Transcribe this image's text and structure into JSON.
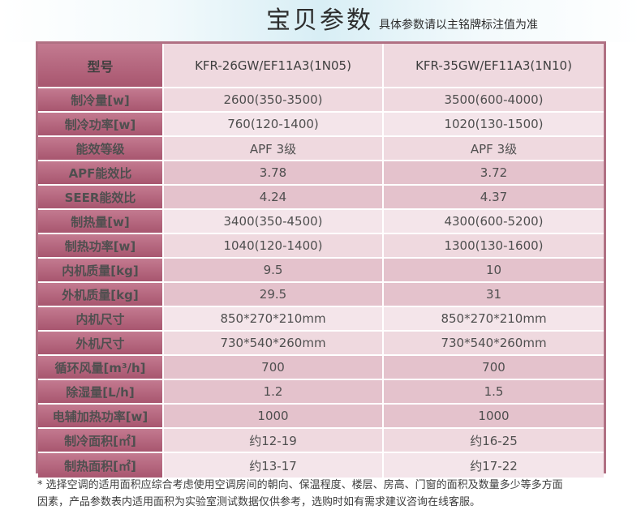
{
  "banner": {
    "title": "宝贝参数",
    "subtitle": "具体参数请以主铭牌标注值为准"
  },
  "table": {
    "header": {
      "label": "型号",
      "model_a": "KFR-26GW/EF11A3(1N05)",
      "model_b": "KFR-35GW/EF11A3(1N10)"
    },
    "rows": [
      {
        "label": "制冷量[w]",
        "a": "2600(350-3500)",
        "b": "3500(600-4000)"
      },
      {
        "label": "制冷功率[w]",
        "a": "760(120-1400)",
        "b": "1020(130-1500)"
      },
      {
        "label": "能效等级",
        "a": "APF 3级",
        "b": "APF 3级"
      },
      {
        "label": "APF能效比",
        "a": "3.78",
        "b": "3.72"
      },
      {
        "label": "SEER能效比",
        "a": "4.24",
        "b": "4.37"
      },
      {
        "label": "制热量[w]",
        "a": "3400(350-4500)",
        "b": "4300(600-5200)"
      },
      {
        "label": "制热功率[w]",
        "a": "1040(120-1400)",
        "b": "1300(130-1600)"
      },
      {
        "label": "内机质量[kg]",
        "a": "9.5",
        "b": "10"
      },
      {
        "label": "外机质量[kg]",
        "a": "29.5",
        "b": "31"
      },
      {
        "label": "内机尺寸",
        "a": "850*270*210mm",
        "b": "850*270*210mm"
      },
      {
        "label": "外机尺寸",
        "a": "730*540*260mm",
        "b": "730*540*260mm"
      },
      {
        "label": "循环风量[m³/h]",
        "a": "700",
        "b": "700"
      },
      {
        "label": "除湿量[L/h]",
        "a": "1.2",
        "b": "1.5"
      },
      {
        "label": "电辅加热功率[w]",
        "a": "1000",
        "b": "1000"
      },
      {
        "label": "制冷面积[㎡]",
        "a": "约12-19",
        "b": "约16-25"
      },
      {
        "label": "制热面积[㎡]",
        "a": "约13-17",
        "b": "约17-22"
      }
    ]
  },
  "footnote": {
    "line1": "* 选择空调的适用面积应综合考虑使用空调房间的朝向、保温程度、楼层、房高、门窗的面积及数量多少等多方面",
    "line2": "因素，产品参数表内适用面积为实验室测试数据仅供参考，选购时如有需求建议咨询在线客服。"
  },
  "colors": {
    "label_bg": "#b06a80",
    "value_bg_light": "#f4e5ea",
    "value_bg_mid": "#efd9df",
    "value_bg_dark": "#e4c2cc",
    "banner_accent": "#d8eef5"
  }
}
